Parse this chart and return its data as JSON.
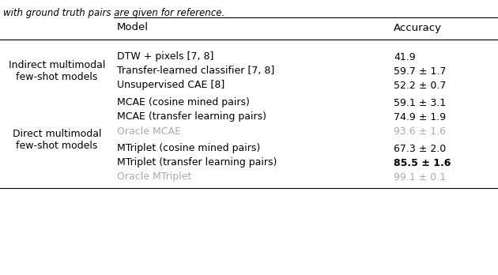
{
  "caption": "with ground truth pairs are given for reference.",
  "col_headers": [
    "Model",
    "Accuracy"
  ],
  "group1_label": "Indirect multimodal\nfew-shot models",
  "group2_label": "Direct multimodal\nfew-shot models",
  "rows": [
    {
      "group": 1,
      "model": "DTW + pixels [7, 8]",
      "accuracy": "41.9",
      "gray": false,
      "bold": false
    },
    {
      "group": 1,
      "model": "Transfer-learned classifier [7, 8]",
      "accuracy": "59.7 ± 1.7",
      "gray": false,
      "bold": false
    },
    {
      "group": 1,
      "model": "Unsupervised CAE [8]",
      "accuracy": "52.2 ± 0.7",
      "gray": false,
      "bold": false
    },
    {
      "group": 2,
      "model": "MCAE (cosine mined pairs)",
      "accuracy": "59.1 ± 3.1",
      "gray": false,
      "bold": false
    },
    {
      "group": 2,
      "model": "MCAE (transfer learning pairs)",
      "accuracy": "74.9 ± 1.9",
      "gray": false,
      "bold": false
    },
    {
      "group": 2,
      "model": "Oracle MCAE",
      "accuracy": "93.6 ± 1.6",
      "gray": true,
      "bold": false
    },
    {
      "group": 2,
      "model": "MTriplet (cosine mined pairs)",
      "accuracy": "67.3 ± 2.0",
      "gray": false,
      "bold": false
    },
    {
      "group": 2,
      "model": "MTriplet (transfer learning pairs)",
      "accuracy": "85.5 ± 1.6",
      "gray": false,
      "bold": true
    },
    {
      "group": 2,
      "model": "Oracle MTriplet",
      "accuracy": "99.1 ± 0.1",
      "gray": true,
      "bold": false
    }
  ],
  "bg_color": "#ffffff",
  "text_color": "#000000",
  "gray_color": "#aaaaaa"
}
